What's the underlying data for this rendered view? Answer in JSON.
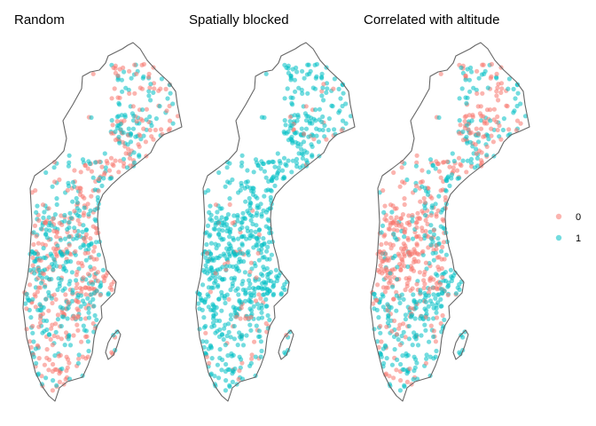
{
  "chart_data": {
    "type": "scatter",
    "panels": [
      {
        "title": "Random",
        "pattern": "random"
      },
      {
        "title": "Spatially blocked",
        "pattern": "blocked"
      },
      {
        "title": "Correlated with altitude",
        "pattern": "altitude"
      }
    ],
    "legend": {
      "placement": "right",
      "entries": [
        {
          "label": "0",
          "color": "#F8766D"
        },
        {
          "label": "1",
          "color": "#00BFC4"
        }
      ]
    },
    "grid": false,
    "axes_visible": false,
    "outline_color": "#666666"
  }
}
